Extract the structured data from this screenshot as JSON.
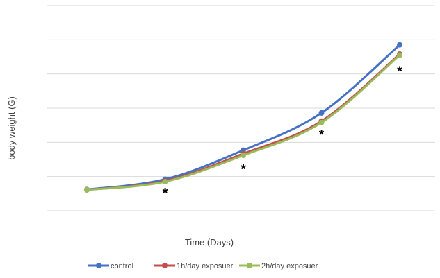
{
  "chart_data": {
    "type": "line",
    "title": "",
    "xlabel": "Time (Days)",
    "ylabel": "body weight (G)",
    "categories": [
      "",
      "",
      "",
      "",
      ""
    ],
    "ylim": [
      0,
      6
    ],
    "grid": true,
    "legend_position": "bottom",
    "series": [
      {
        "name": "control",
        "color": "#4472C4",
        "values": [
          0.62,
          0.92,
          1.77,
          2.86,
          4.85
        ]
      },
      {
        "name": "1h/day exposuer",
        "color": "#C0504D",
        "values": [
          0.61,
          0.87,
          1.67,
          2.62,
          4.58
        ]
      },
      {
        "name": "2h/day exposuer",
        "color": "#9BBB59",
        "values": [
          0.61,
          0.85,
          1.62,
          2.58,
          4.55
        ]
      }
    ],
    "annotations": [
      {
        "text": "*",
        "category_index": 1,
        "y": 0.55
      },
      {
        "text": "*",
        "category_index": 2,
        "y": 1.25
      },
      {
        "text": "*",
        "category_index": 3,
        "y": 2.25
      },
      {
        "text": "*",
        "category_index": 4,
        "y": 4.1
      }
    ]
  }
}
